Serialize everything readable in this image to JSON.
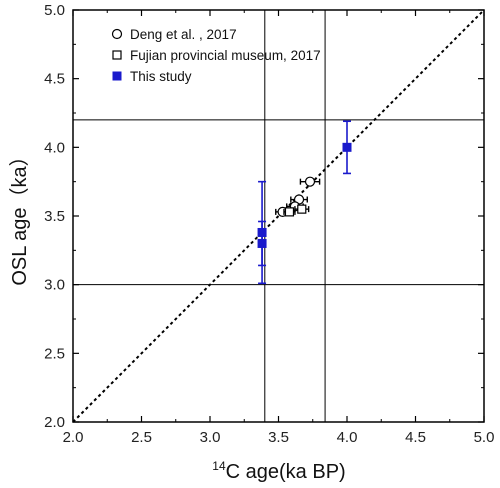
{
  "chart_data": {
    "type": "scatter",
    "xlabel_sup": "14",
    "xlabel": "C age(ka BP)",
    "ylabel": "OSL  age（ka）",
    "xlim": [
      2.0,
      5.0
    ],
    "ylim": [
      2.0,
      5.0
    ],
    "xticks": [
      "2.0",
      "2.5",
      "3.0",
      "3.5",
      "4.0",
      "4.5",
      "5.0"
    ],
    "yticks": [
      "2.0",
      "2.5",
      "3.0",
      "3.5",
      "4.0",
      "4.5",
      "5.0"
    ],
    "reference_lines": {
      "x": [
        3.4,
        3.84
      ],
      "y": [
        3.0,
        4.2
      ]
    },
    "one_to_one_line": true,
    "legend_position": "top-left",
    "series": [
      {
        "name": "Deng et al. , 2017",
        "marker": "circle-open",
        "color": "#000000",
        "points": [
          {
            "x": 3.73,
            "y": 3.75,
            "xerr": 0.07,
            "yerr": 0.0
          },
          {
            "x": 3.65,
            "y": 3.62,
            "xerr": 0.06,
            "yerr": 0.0
          },
          {
            "x": 3.62,
            "y": 3.57,
            "xerr": 0.06,
            "yerr": 0.0
          },
          {
            "x": 3.53,
            "y": 3.53,
            "xerr": 0.05,
            "yerr": 0.0
          }
        ]
      },
      {
        "name": "Fujian provincial museum, 2017",
        "marker": "square-open",
        "color": "#000000",
        "points": [
          {
            "x": 3.67,
            "y": 3.55,
            "xerr": 0.05,
            "yerr": 0.0
          },
          {
            "x": 3.58,
            "y": 3.53,
            "xerr": 0.04,
            "yerr": 0.0
          }
        ]
      },
      {
        "name": "This study",
        "marker": "square-filled",
        "color": "#1a1acc",
        "points": [
          {
            "x": 3.38,
            "y": 3.38,
            "xerr": 0.0,
            "yerr": 0.37
          },
          {
            "x": 3.38,
            "y": 3.3,
            "xerr": 0.0,
            "yerr": 0.16
          },
          {
            "x": 4.0,
            "y": 4.0,
            "xerr": 0.0,
            "yerr": 0.19
          }
        ]
      }
    ]
  }
}
